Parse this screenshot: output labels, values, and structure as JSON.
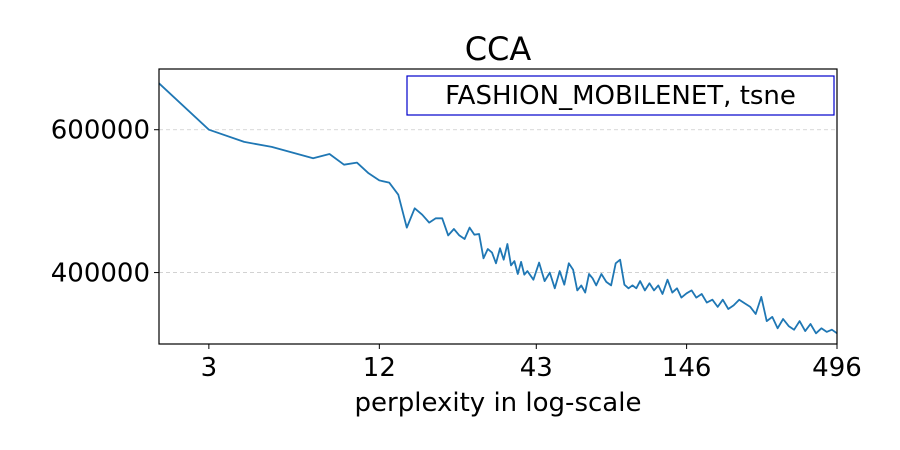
{
  "chart_data": {
    "type": "line",
    "title": "CCA",
    "xlabel": "perplexity in log-scale",
    "ylabel": "",
    "x_scale": "log",
    "xlim": [
      2,
      496
    ],
    "ylim": [
      300000,
      685000
    ],
    "x_ticks": [
      3,
      12,
      43,
      146,
      496
    ],
    "x_tick_labels": [
      "3",
      "12",
      "43",
      "146",
      "496"
    ],
    "y_ticks": [
      400000,
      600000
    ],
    "y_tick_labels": [
      "400000",
      "600000"
    ],
    "grid": "horizontal-dashed",
    "legend_text": "FASHION_MOBILENET, tsne",
    "legend_position": "top-right",
    "series": [
      {
        "color": "#1f77b4",
        "x": [
          2,
          3,
          4,
          5,
          7,
          8,
          9,
          10,
          11,
          12,
          13,
          14,
          15,
          16,
          17,
          18,
          19,
          20,
          21,
          22,
          23,
          24,
          25,
          26,
          27,
          28,
          29,
          30,
          31,
          32,
          33,
          34,
          35,
          36,
          37,
          38,
          39,
          40,
          42,
          44,
          46,
          48,
          50,
          52,
          54,
          56,
          58,
          60,
          62,
          64,
          66,
          68,
          70,
          73,
          76,
          79,
          82,
          85,
          88,
          91,
          94,
          97,
          100,
          104,
          108,
          112,
          116,
          120,
          125,
          130,
          135,
          140,
          146,
          152,
          158,
          165,
          172,
          180,
          188,
          196,
          205,
          214,
          224,
          234,
          245,
          256,
          268,
          280,
          293,
          306,
          320,
          335,
          350,
          366,
          383,
          400,
          418,
          437,
          456,
          476,
          496
        ],
        "values": [
          665000,
          600000,
          583000,
          576000,
          560000,
          566000,
          551000,
          554000,
          539000,
          529000,
          526000,
          509000,
          463000,
          490000,
          481000,
          470000,
          476000,
          476000,
          452000,
          461000,
          452000,
          447000,
          463000,
          453000,
          454000,
          420000,
          433000,
          428000,
          413000,
          434000,
          418000,
          440000,
          410000,
          416000,
          398000,
          415000,
          397000,
          402000,
          390000,
          414000,
          388000,
          400000,
          378000,
          402000,
          383000,
          413000,
          404000,
          375000,
          382000,
          372000,
          398000,
          392000,
          382000,
          398000,
          387000,
          382000,
          413000,
          418000,
          383000,
          378000,
          382000,
          378000,
          388000,
          375000,
          385000,
          375000,
          382000,
          370000,
          390000,
          372000,
          378000,
          365000,
          371000,
          375000,
          365000,
          370000,
          358000,
          362000,
          352000,
          362000,
          349000,
          354000,
          362000,
          357000,
          352000,
          342000,
          366000,
          332000,
          338000,
          322000,
          335000,
          325000,
          320000,
          332000,
          318000,
          328000,
          315000,
          322000,
          317000,
          320000,
          315000
        ]
      }
    ]
  }
}
